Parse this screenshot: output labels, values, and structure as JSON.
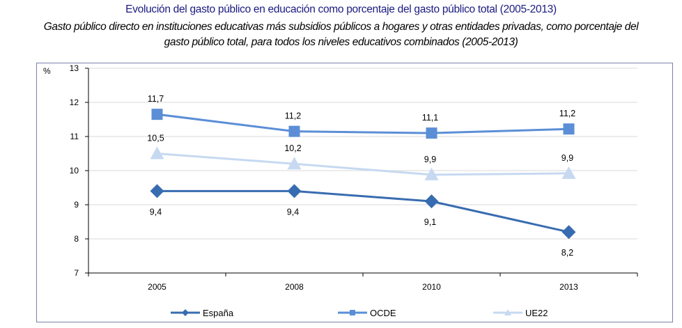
{
  "title": "Evolución del gasto público en educación como porcentaje del gasto público total (2005-2013)",
  "subtitle_line1": "Gasto público directo en instituciones educativas más subsidios públicos a hogares y otras entidades privadas, como porcentaje del",
  "subtitle_line2": "gasto público total, para todos los niveles educativos combinados (2005-2013)",
  "chart_data": {
    "type": "line",
    "ylabel": "%",
    "ylim": [
      7,
      13
    ],
    "yticks": [
      "7",
      "8",
      "9",
      "10",
      "11",
      "12",
      "13"
    ],
    "grid": true,
    "legend": "bottom",
    "categories": [
      "2005",
      "2008",
      "2010",
      "2013"
    ],
    "series": [
      {
        "name": "España",
        "values": [
          9.4,
          9.4,
          9.1,
          8.2
        ],
        "labels": [
          "9,4",
          "9,4",
          "9,1",
          "8,2"
        ],
        "marker": "diamond",
        "color": "#386cb0",
        "label_pos": "below"
      },
      {
        "name": "OCDE",
        "values": [
          11.65,
          11.15,
          11.1,
          11.22
        ],
        "labels": [
          "11,7",
          "11,2",
          "11,1",
          "11,2"
        ],
        "marker": "square",
        "color": "#5b8ed6",
        "label_pos": "above"
      },
      {
        "name": "UE22",
        "values": [
          10.5,
          10.2,
          9.88,
          9.92
        ],
        "labels": [
          "10,5",
          "10,2",
          "9,9",
          "9,9"
        ],
        "marker": "triangle",
        "color": "#c6d9f1",
        "label_pos": "above"
      }
    ]
  }
}
